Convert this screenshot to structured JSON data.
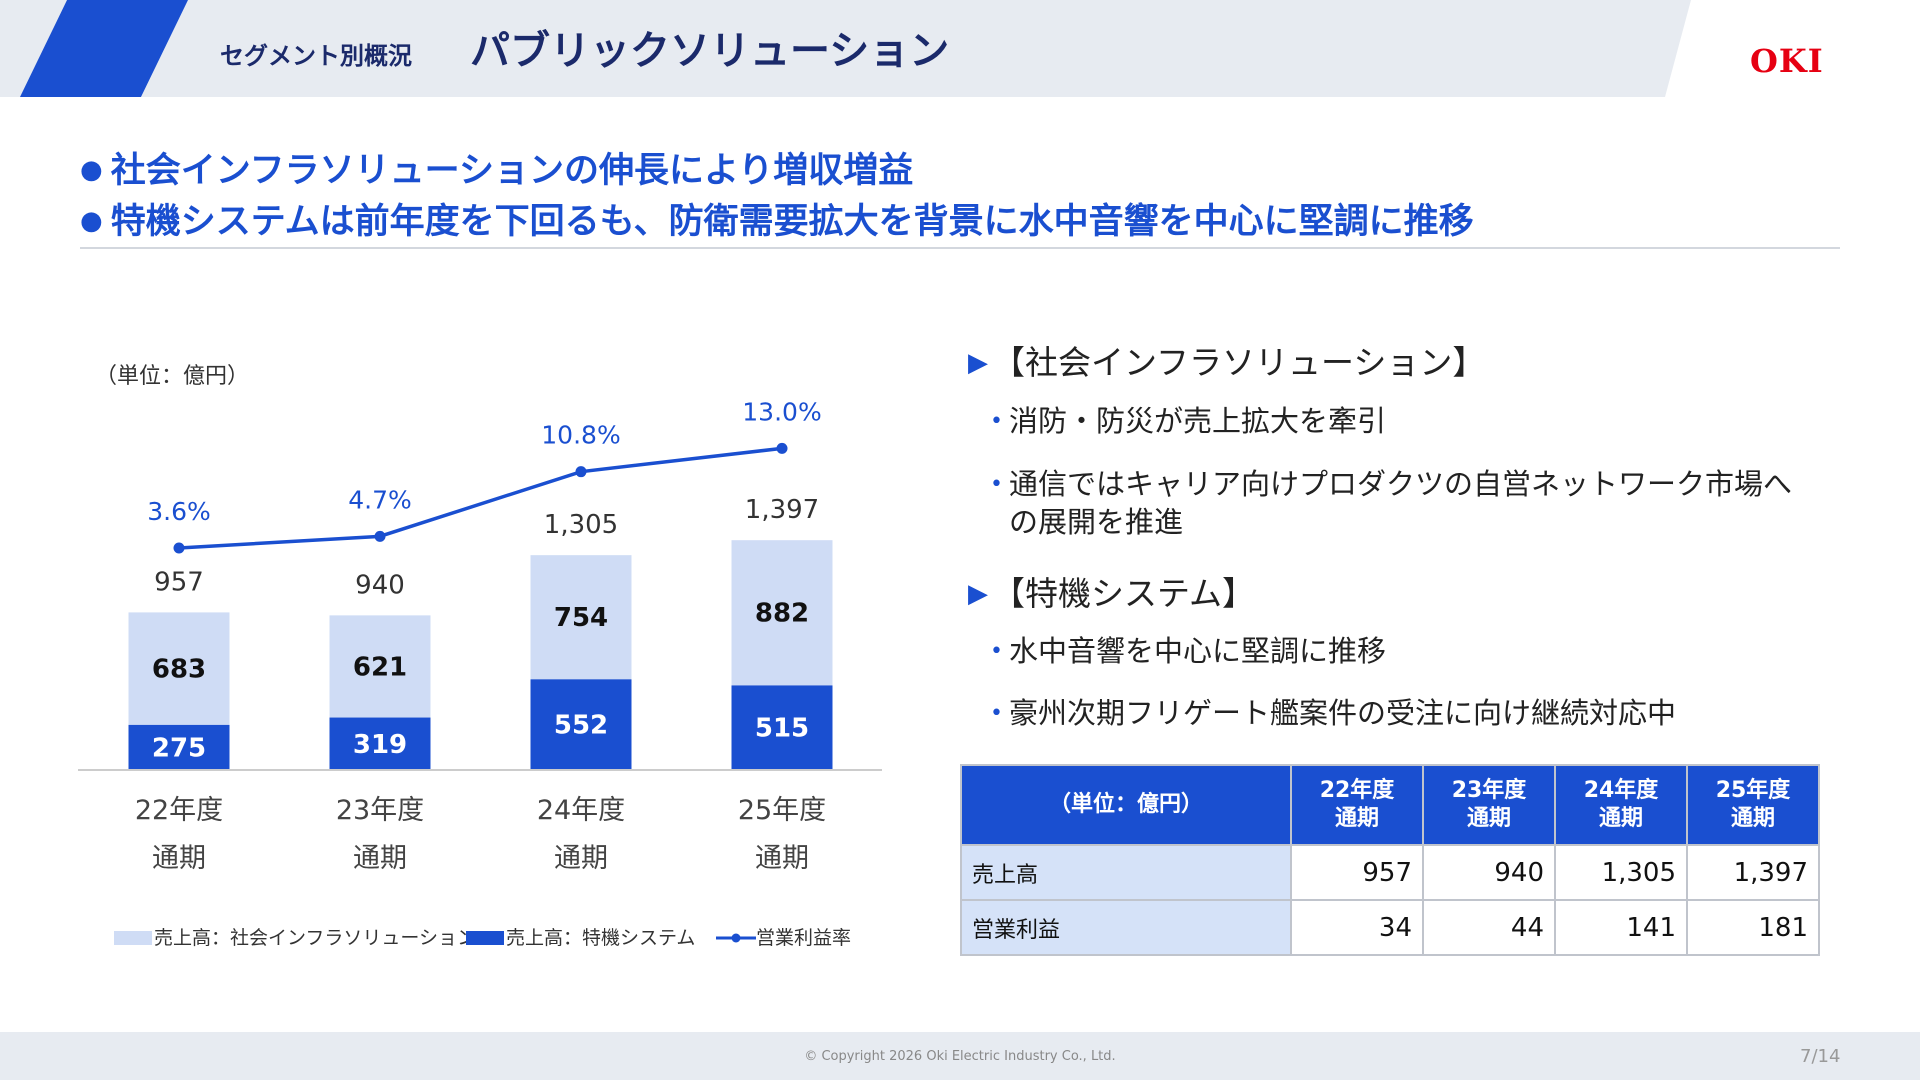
{
  "header": {
    "segment_label": "セグメント別概況",
    "title": "パブリックソリューション",
    "logo_text": "OKI"
  },
  "highlights": [
    "社会インフラソリューションの伸長により増収増益",
    "特機システムは前年度を下回るも、防衛需要拡大を背景に水中音響を中心に堅調に推移"
  ],
  "unit_label": "（単位：億円）",
  "chart_data": {
    "type": "bar",
    "stacked": true,
    "categories": [
      "22年度\n通期",
      "23年度\n通期",
      "24年度\n通期",
      "25年度\n通期"
    ],
    "series": [
      {
        "name": "売上高：特機システム",
        "values": [
          275,
          319,
          552,
          515
        ],
        "color": "#1a4fd0"
      },
      {
        "name": "売上高：社会インフラソリューション",
        "values": [
          683,
          621,
          754,
          882
        ],
        "color": "#cfdcf5"
      }
    ],
    "totals": [
      957,
      940,
      1305,
      1397
    ],
    "totals_labels": [
      "957",
      "940",
      "1,305",
      "1,397"
    ],
    "line": {
      "name": "営業利益率",
      "values": [
        3.6,
        4.7,
        10.8,
        13.0
      ],
      "labels": [
        "3.6%",
        "4.7%",
        "10.8%",
        "13.0%"
      ],
      "color": "#1a4fd0"
    },
    "ylim": [
      0,
      1500
    ],
    "legend_position": "bottom",
    "grid": false
  },
  "legend": {
    "infra": "売上高：社会インフラソリューション",
    "special": "売上高：特機システム",
    "margin": "営業利益率"
  },
  "sections": [
    {
      "heading": "【社会インフラソリューション】",
      "items": [
        "消防・防災が売上拡大を牽引",
        "通信ではキャリア向けプロダクツの自営ネットワーク市場への展開を推進"
      ]
    },
    {
      "heading": "【特機システム】",
      "items": [
        "水中音響を中心に堅調に推移",
        "豪州次期フリゲート艦案件の受注に向け継続対応中"
      ]
    }
  ],
  "table": {
    "unit_header": "（単位：億円）",
    "columns": [
      [
        "22年度",
        "通期"
      ],
      [
        "23年度",
        "通期"
      ],
      [
        "24年度",
        "通期"
      ],
      [
        "25年度",
        "通期"
      ]
    ],
    "rows": [
      {
        "label": "売上高",
        "values": [
          "957",
          "940",
          "1,305",
          "1,397"
        ]
      },
      {
        "label": "営業利益",
        "values": [
          "34",
          "44",
          "141",
          "181"
        ]
      }
    ]
  },
  "footer": {
    "copyright": "© Copyright 2026 Oki Electric Industry Co., Ltd.",
    "page": "7/14"
  },
  "colors": {
    "brand_blue": "#1a4fd0",
    "light_blue": "#cfdcf5",
    "logo_red": "#e60012",
    "title_navy": "#1b2a6b"
  }
}
